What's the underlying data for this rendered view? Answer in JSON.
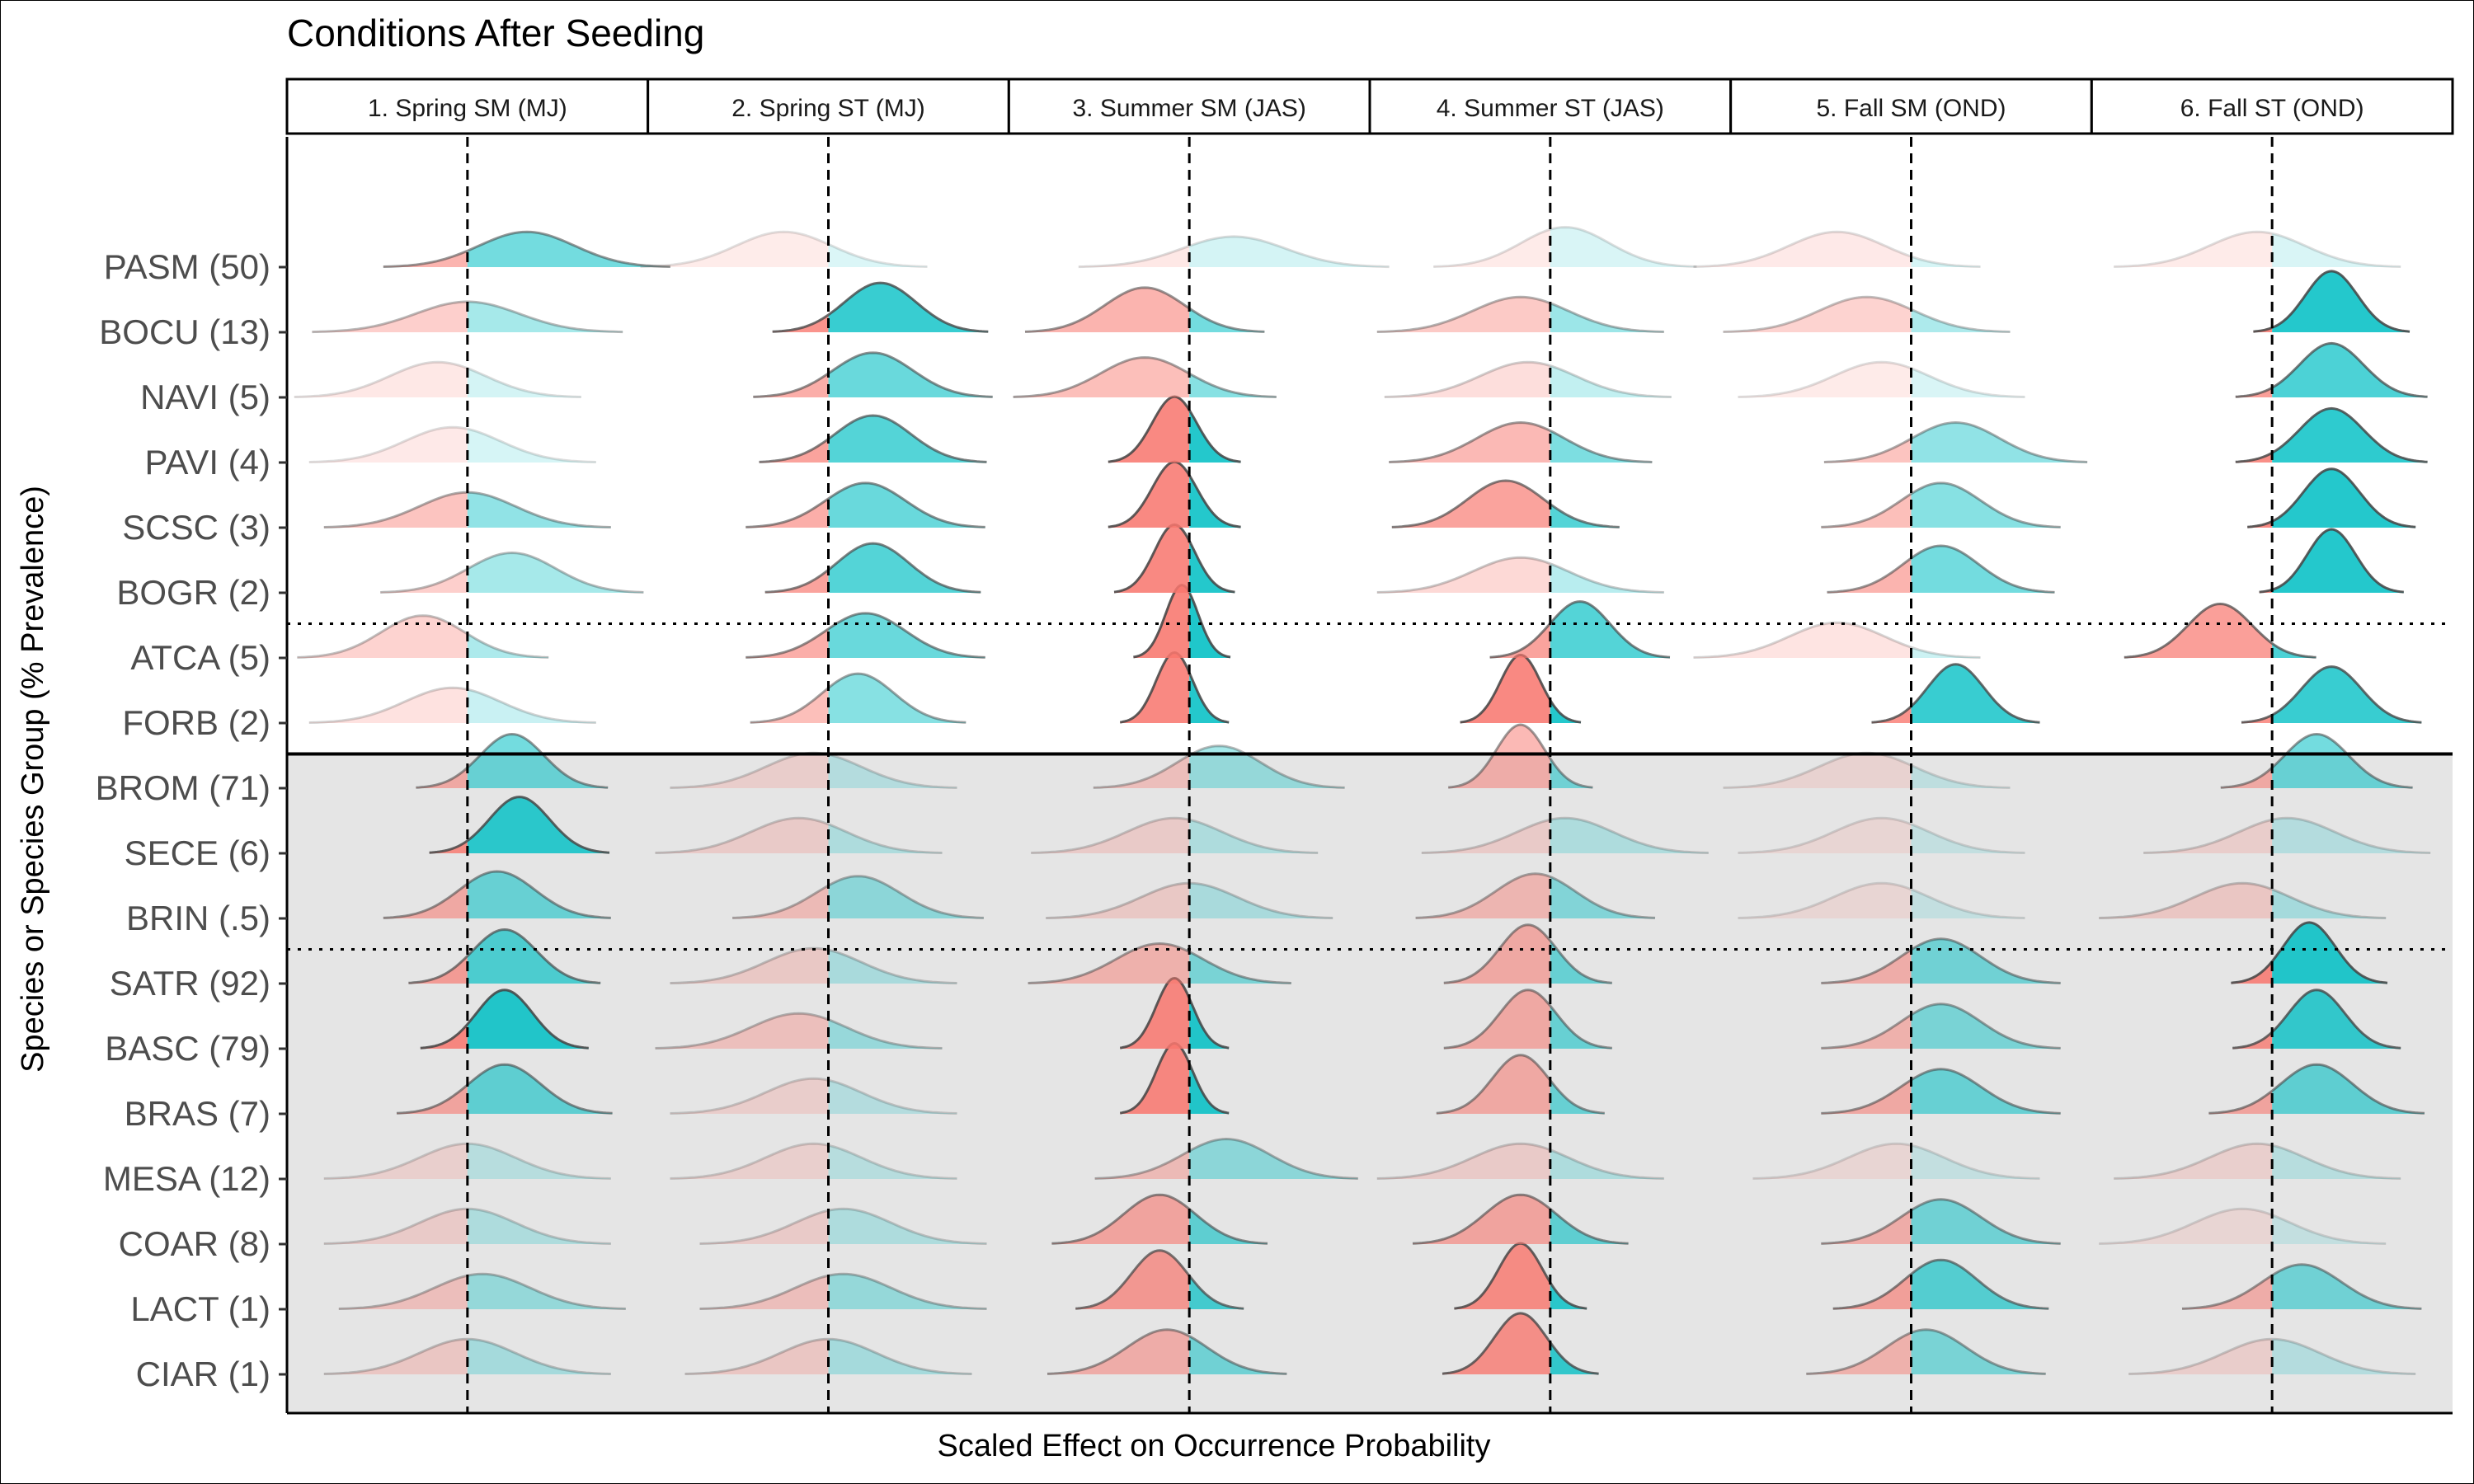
{
  "chart_data": {
    "type": "ridgeline",
    "title": "Conditions After Seeding",
    "xlabel": "Scaled Effect on Occurrence Probability",
    "ylabel": "Species or Species Group (% Prevalence)",
    "facets": [
      "1. Spring SM (MJ)",
      "2. Spring ST (MJ)",
      "3. Summer SM (JAS)",
      "4. Summer ST (JAS)",
      "5. Fall SM (OND)",
      "6. Fall ST (OND)"
    ],
    "rows": [
      "PASM (50)",
      "BOCU (13)",
      "NAVI (5)",
      "PAVI (4)",
      "SCSC (3)",
      "BOGR (2)",
      "ATCA (5)",
      "FORB (2)",
      "BROM (71)",
      "SECE (6)",
      "BRIN (.5)",
      "SATR (92)",
      "BASC (79)",
      "BRAS (7)",
      "MESA (12)",
      "COAR (8)",
      "LACT (1)",
      "CIAR (1)"
    ],
    "seeded_rows": 8,
    "group_dividers_after": [
      6,
      8,
      11
    ],
    "reference_line_x": 0,
    "fill_colors": {
      "negative": "#f8766d",
      "positive": "#00bfc4"
    },
    "panel_background": {
      "seeded": "#ffffff",
      "unseeded": "#e5e5e5"
    },
    "effects": [
      [
        [
          0.4,
          1.0,
          0.55
        ],
        [
          -0.3,
          1.0,
          0.03
        ],
        [
          0.3,
          1.1,
          0.07
        ],
        [
          0.1,
          0.9,
          0.04
        ],
        [
          -0.5,
          1.0,
          0.05
        ],
        [
          -0.1,
          1.0,
          0.04
        ]
      ],
      [
        [
          0.0,
          1.1,
          0.3
        ],
        [
          0.35,
          0.7,
          0.85
        ],
        [
          -0.3,
          0.8,
          0.55
        ],
        [
          -0.2,
          1.0,
          0.35
        ],
        [
          -0.3,
          1.0,
          0.25
        ],
        [
          0.4,
          0.45,
          0.95
        ]
      ],
      [
        [
          -0.2,
          1.0,
          0.06
        ],
        [
          0.3,
          0.8,
          0.6
        ],
        [
          -0.3,
          0.9,
          0.45
        ],
        [
          -0.15,
          1.0,
          0.15
        ],
        [
          -0.2,
          1.0,
          0.04
        ],
        [
          0.4,
          0.6,
          0.75
        ]
      ],
      [
        [
          -0.1,
          1.0,
          0.05
        ],
        [
          0.3,
          0.75,
          0.7
        ],
        [
          -0.1,
          0.35,
          0.95
        ],
        [
          -0.2,
          0.9,
          0.5
        ],
        [
          0.3,
          0.9,
          0.4
        ],
        [
          0.4,
          0.6,
          0.9
        ]
      ],
      [
        [
          0.0,
          1.0,
          0.4
        ],
        [
          0.25,
          0.8,
          0.6
        ],
        [
          -0.1,
          0.35,
          0.95
        ],
        [
          -0.3,
          0.75,
          0.7
        ],
        [
          0.2,
          0.8,
          0.45
        ],
        [
          0.4,
          0.5,
          0.95
        ]
      ],
      [
        [
          0.3,
          0.9,
          0.3
        ],
        [
          0.3,
          0.7,
          0.7
        ],
        [
          -0.1,
          0.3,
          0.95
        ],
        [
          -0.2,
          1.0,
          0.2
        ],
        [
          0.2,
          0.75,
          0.55
        ],
        [
          0.4,
          0.4,
          0.95
        ]
      ],
      [
        [
          -0.3,
          0.85,
          0.25
        ],
        [
          0.25,
          0.8,
          0.6
        ],
        [
          -0.05,
          0.2,
          0.97
        ],
        [
          0.2,
          0.55,
          0.7
        ],
        [
          -0.5,
          1.0,
          0.1
        ],
        [
          -0.35,
          0.6,
          0.75
        ]
      ],
      [
        [
          -0.1,
          1.0,
          0.12
        ],
        [
          0.2,
          0.7,
          0.45
        ],
        [
          -0.1,
          0.25,
          0.95
        ],
        [
          -0.2,
          0.3,
          0.95
        ],
        [
          0.3,
          0.5,
          0.85
        ],
        [
          0.4,
          0.55,
          0.85
        ]
      ],
      [
        [
          0.3,
          0.6,
          0.55
        ],
        [
          -0.1,
          1.0,
          0.12
        ],
        [
          0.2,
          0.85,
          0.3
        ],
        [
          -0.2,
          0.4,
          0.5
        ],
        [
          -0.3,
          1.0,
          0.07
        ],
        [
          0.3,
          0.6,
          0.55
        ]
      ],
      [
        [
          0.35,
          0.55,
          0.9
        ],
        [
          -0.2,
          1.0,
          0.15
        ],
        [
          -0.1,
          1.0,
          0.15
        ],
        [
          0.1,
          1.0,
          0.15
        ],
        [
          -0.2,
          1.0,
          0.04
        ],
        [
          0.1,
          1.0,
          0.12
        ]
      ],
      [
        [
          0.2,
          0.75,
          0.55
        ],
        [
          0.2,
          0.85,
          0.35
        ],
        [
          0.0,
          1.0,
          0.18
        ],
        [
          -0.1,
          0.8,
          0.4
        ],
        [
          -0.2,
          1.0,
          0.04
        ],
        [
          -0.2,
          1.0,
          0.2
        ]
      ],
      [
        [
          0.25,
          0.6,
          0.7
        ],
        [
          -0.1,
          1.0,
          0.18
        ],
        [
          -0.2,
          0.9,
          0.45
        ],
        [
          -0.15,
          0.5,
          0.55
        ],
        [
          0.2,
          0.8,
          0.5
        ],
        [
          0.25,
          0.45,
          0.95
        ]
      ],
      [
        [
          0.25,
          0.5,
          0.95
        ],
        [
          -0.2,
          1.0,
          0.28
        ],
        [
          -0.1,
          0.25,
          0.95
        ],
        [
          -0.15,
          0.5,
          0.55
        ],
        [
          0.2,
          0.8,
          0.45
        ],
        [
          0.3,
          0.5,
          0.85
        ]
      ],
      [
        [
          0.25,
          0.7,
          0.6
        ],
        [
          -0.1,
          1.0,
          0.12
        ],
        [
          -0.1,
          0.25,
          0.95
        ],
        [
          -0.2,
          0.5,
          0.55
        ],
        [
          0.2,
          0.8,
          0.55
        ],
        [
          0.3,
          0.7,
          0.6
        ]
      ],
      [
        [
          0.0,
          1.0,
          0.1
        ],
        [
          -0.1,
          1.0,
          0.1
        ],
        [
          0.25,
          0.9,
          0.35
        ],
        [
          -0.2,
          1.0,
          0.15
        ],
        [
          -0.1,
          1.0,
          0.04
        ],
        [
          -0.1,
          1.0,
          0.1
        ]
      ],
      [
        [
          0.0,
          1.0,
          0.15
        ],
        [
          0.1,
          1.0,
          0.15
        ],
        [
          -0.2,
          0.7,
          0.6
        ],
        [
          -0.2,
          0.7,
          0.6
        ],
        [
          0.2,
          0.8,
          0.5
        ],
        [
          -0.2,
          1.0,
          0.04
        ]
      ],
      [
        [
          0.1,
          1.0,
          0.3
        ],
        [
          0.1,
          1.0,
          0.3
        ],
        [
          -0.2,
          0.5,
          0.75
        ],
        [
          -0.2,
          0.35,
          0.9
        ],
        [
          0.2,
          0.7,
          0.65
        ],
        [
          0.2,
          0.8,
          0.5
        ]
      ],
      [
        [
          0.0,
          1.0,
          0.2
        ],
        [
          0.0,
          1.0,
          0.2
        ],
        [
          -0.15,
          0.8,
          0.5
        ],
        [
          -0.2,
          0.45,
          0.85
        ],
        [
          0.1,
          0.8,
          0.45
        ],
        [
          0.0,
          1.0,
          0.12
        ]
      ]
    ]
  }
}
